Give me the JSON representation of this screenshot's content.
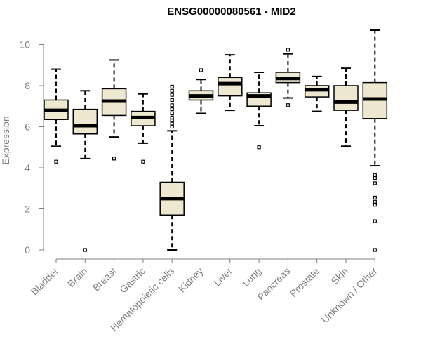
{
  "chart_data": {
    "type": "box",
    "title": "ENSG00000080561 - MID2",
    "xlabel": "",
    "ylabel": "Expression",
    "ylim": [
      0,
      10.8
    ],
    "yticks": [
      "0",
      "2",
      "4",
      "6",
      "8",
      "10"
    ],
    "grid": false,
    "colors": {
      "box_fill": "#efe8d1",
      "box_stroke": "#000000",
      "axis": "#808080",
      "title": "#000000"
    },
    "categories": [
      "Bladder",
      "Brain",
      "Breast",
      "Gastric",
      "Hematopoietic cells",
      "Kidney",
      "Liver",
      "Lung",
      "Pancreas",
      "Prostate",
      "Skin",
      "Unknown / Other"
    ],
    "boxes": [
      {
        "min": 5.05,
        "q1": 6.35,
        "median": 6.8,
        "q3": 7.3,
        "max": 8.8,
        "outliers": [
          4.3
        ]
      },
      {
        "min": 4.45,
        "q1": 5.65,
        "median": 6.05,
        "q3": 6.85,
        "max": 7.75,
        "outliers": [
          0.0
        ]
      },
      {
        "min": 5.5,
        "q1": 6.55,
        "median": 7.25,
        "q3": 7.85,
        "max": 9.25,
        "outliers": [
          4.45
        ]
      },
      {
        "min": 5.2,
        "q1": 6.05,
        "median": 6.45,
        "q3": 6.75,
        "max": 7.6,
        "outliers": [
          4.3
        ]
      },
      {
        "min": 0.0,
        "q1": 1.7,
        "median": 2.5,
        "q3": 3.3,
        "max": 5.8,
        "outliers": [
          6.0,
          6.15,
          6.3,
          6.45,
          6.65,
          6.85,
          7.05,
          7.3,
          7.55,
          7.75,
          7.95
        ]
      },
      {
        "min": 6.65,
        "q1": 7.3,
        "median": 7.5,
        "q3": 7.75,
        "max": 8.3,
        "outliers": [
          8.75
        ]
      },
      {
        "min": 6.8,
        "q1": 7.5,
        "median": 8.1,
        "q3": 8.4,
        "max": 9.5,
        "outliers": []
      },
      {
        "min": 6.05,
        "q1": 7.0,
        "median": 7.5,
        "q3": 7.65,
        "max": 8.65,
        "outliers": [
          5.0
        ]
      },
      {
        "min": 7.4,
        "q1": 8.15,
        "median": 8.35,
        "q3": 8.65,
        "max": 9.55,
        "outliers": [
          7.05,
          9.75
        ]
      },
      {
        "min": 6.75,
        "q1": 7.45,
        "median": 7.8,
        "q3": 8.0,
        "max": 8.45,
        "outliers": []
      },
      {
        "min": 5.05,
        "q1": 6.8,
        "median": 7.2,
        "q3": 8.0,
        "max": 8.85,
        "outliers": []
      },
      {
        "min": 4.1,
        "q1": 6.4,
        "median": 7.35,
        "q3": 8.15,
        "max": 10.7,
        "outliers": [
          0.0,
          1.4,
          2.2,
          2.35,
          2.55,
          3.25,
          3.5,
          3.65
        ]
      }
    ]
  }
}
